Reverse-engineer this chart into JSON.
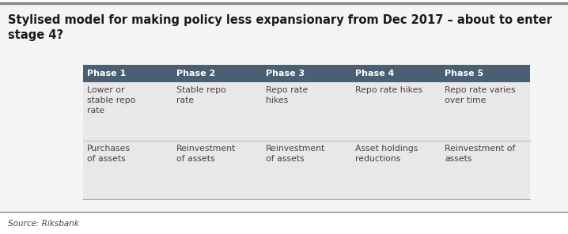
{
  "title": "Stylised model for making policy less expansionary from Dec 2017 – about to enter\nstage 4?",
  "title_fontsize": 10.5,
  "title_color": "#1a1a1a",
  "source": "Source: Riksbank",
  "background_color": "#f5f5f5",
  "outer_bg_color": "#ffffff",
  "table_bg_color": "#e8e8e8",
  "header_bg_color": "#4a5f72",
  "header_text_color": "#ffffff",
  "header_font_size": 8,
  "cell_text_color": "#4a4040",
  "cell_font_size": 7.8,
  "phases": [
    "Phase 1",
    "Phase 2",
    "Phase 3",
    "Phase 4",
    "Phase 5"
  ],
  "row1_labels": [
    "Lower or\nstable repo\nrate",
    "Stable repo\nrate",
    "Repo rate\nhikes",
    "Repo rate hikes",
    "Repo rate varies\nover time"
  ],
  "row2_labels": [
    "Purchases\nof assets",
    "Reinvestment\nof assets",
    "Reinvestment\nof assets",
    "Asset holdings\nreductions",
    "Reinvestment of\nassets"
  ],
  "figsize": [
    7.18,
    2.96
  ],
  "dpi": 100
}
